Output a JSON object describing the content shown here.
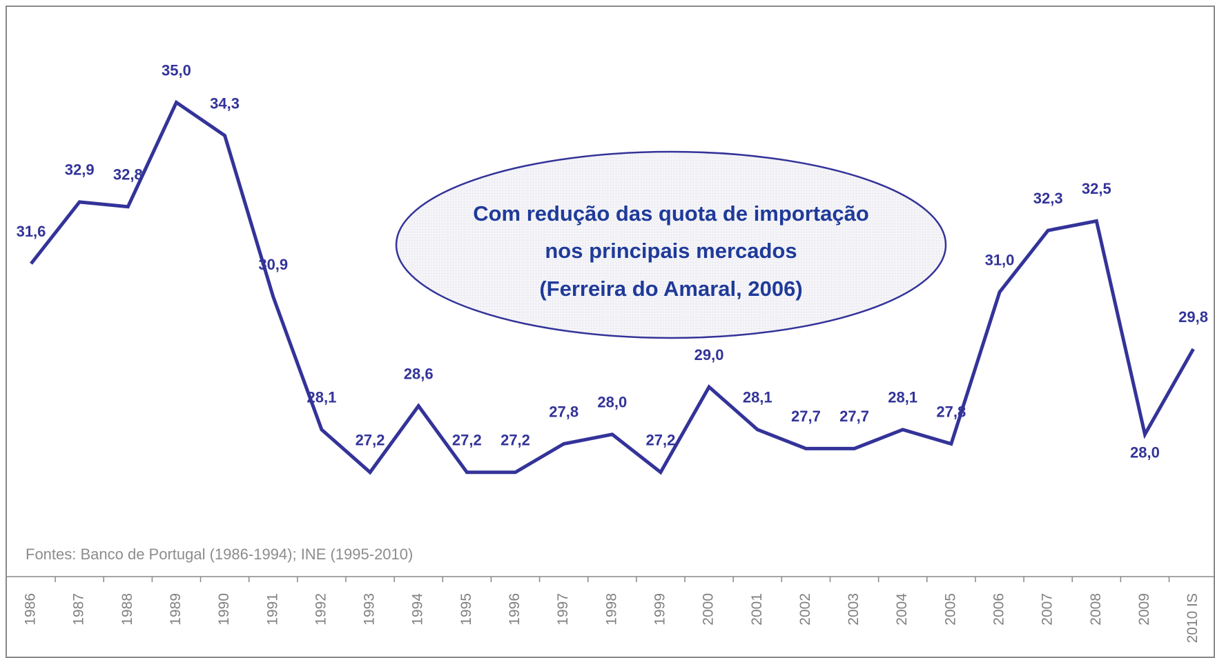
{
  "chart_data": {
    "type": "line",
    "categories": [
      "1986",
      "1987",
      "1988",
      "1989",
      "1990",
      "1991",
      "1992",
      "1993",
      "1994",
      "1995",
      "1996",
      "1997",
      "1998",
      "1999",
      "2000",
      "2001",
      "2002",
      "2003",
      "2004",
      "2005",
      "2006",
      "2007",
      "2008",
      "2009",
      "2010 IS"
    ],
    "values": [
      31.6,
      32.9,
      32.8,
      35.0,
      34.3,
      30.9,
      28.1,
      27.2,
      28.6,
      27.2,
      27.2,
      27.8,
      28.0,
      27.2,
      29.0,
      28.1,
      27.7,
      27.7,
      28.1,
      27.8,
      31.0,
      32.3,
      32.5,
      28.0,
      29.8
    ],
    "value_labels": [
      "31,6",
      "32,9",
      "32,8",
      "35,0",
      "34,3",
      "30,9",
      "28,1",
      "27,2",
      "28,6",
      "27,2",
      "27,2",
      "27,8",
      "28,0",
      "27,2",
      "29,0",
      "28,1",
      "27,7",
      "27,7",
      "28,1",
      "27,8",
      "31,0",
      "32,3",
      "32,5",
      "28,0",
      "29,8"
    ],
    "color": "#333399",
    "ylim": [
      25,
      37
    ],
    "annotation": [
      "Com redução das quota de importação",
      "nos principais mercados",
      "(Ferreira do Amaral, 2006)"
    ],
    "source": "Fontes: Banco de Portugal (1986-1994); INE (1995-2010)"
  }
}
